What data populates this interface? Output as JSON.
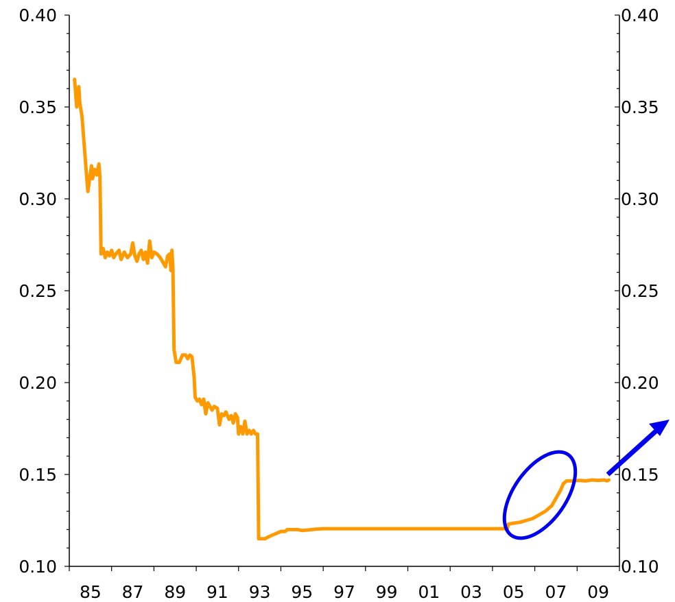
{
  "chart_data": {
    "type": "line",
    "title": "",
    "xlabel": "",
    "ylabel": "",
    "x_tick_labels": [
      "85",
      "87",
      "89",
      "91",
      "93",
      "95",
      "97",
      "99",
      "01",
      "03",
      "05",
      "07",
      "09"
    ],
    "x_tick_years": [
      1985,
      1987,
      1989,
      1991,
      1993,
      1995,
      1997,
      1999,
      2001,
      2003,
      2005,
      2007,
      2009
    ],
    "xlim": [
      1984,
      2010
    ],
    "ylim": [
      0.1,
      0.4
    ],
    "y_ticks": [
      0.1,
      0.15,
      0.2,
      0.25,
      0.3,
      0.35,
      0.4
    ],
    "y_tick_labels": [
      "0.10",
      "0.15",
      "0.20",
      "0.25",
      "0.30",
      "0.35",
      "0.40"
    ],
    "y_axes": [
      "left",
      "right"
    ],
    "grid": false,
    "legend": "none",
    "series": [
      {
        "color": "#FF9900",
        "points": [
          [
            1984.25,
            0.365
          ],
          [
            1984.35,
            0.35
          ],
          [
            1984.45,
            0.361
          ],
          [
            1984.5,
            0.352
          ],
          [
            1984.6,
            0.345
          ],
          [
            1984.7,
            0.33
          ],
          [
            1984.8,
            0.315
          ],
          [
            1984.88,
            0.304
          ],
          [
            1984.95,
            0.31
          ],
          [
            1985.05,
            0.318
          ],
          [
            1985.1,
            0.311
          ],
          [
            1985.2,
            0.316
          ],
          [
            1985.3,
            0.313
          ],
          [
            1985.4,
            0.319
          ],
          [
            1985.45,
            0.312
          ],
          [
            1985.5,
            0.27
          ],
          [
            1985.6,
            0.273
          ],
          [
            1985.7,
            0.268
          ],
          [
            1985.8,
            0.271
          ],
          [
            1985.9,
            0.269
          ],
          [
            1986.0,
            0.272
          ],
          [
            1986.1,
            0.268
          ],
          [
            1986.2,
            0.27
          ],
          [
            1986.35,
            0.272
          ],
          [
            1986.45,
            0.267
          ],
          [
            1986.6,
            0.271
          ],
          [
            1986.75,
            0.268
          ],
          [
            1986.9,
            0.27
          ],
          [
            1987.0,
            0.276
          ],
          [
            1987.1,
            0.269
          ],
          [
            1987.2,
            0.266
          ],
          [
            1987.3,
            0.27
          ],
          [
            1987.4,
            0.272
          ],
          [
            1987.5,
            0.267
          ],
          [
            1987.6,
            0.271
          ],
          [
            1987.7,
            0.265
          ],
          [
            1987.8,
            0.277
          ],
          [
            1987.9,
            0.268
          ],
          [
            1988.0,
            0.271
          ],
          [
            1988.15,
            0.27
          ],
          [
            1988.3,
            0.268
          ],
          [
            1988.45,
            0.265
          ],
          [
            1988.55,
            0.263
          ],
          [
            1988.65,
            0.269
          ],
          [
            1988.75,
            0.27
          ],
          [
            1988.8,
            0.261
          ],
          [
            1988.85,
            0.272
          ],
          [
            1988.9,
            0.262
          ],
          [
            1988.95,
            0.218
          ],
          [
            1989.05,
            0.211
          ],
          [
            1989.2,
            0.211
          ],
          [
            1989.35,
            0.215
          ],
          [
            1989.5,
            0.215
          ],
          [
            1989.6,
            0.213
          ],
          [
            1989.7,
            0.215
          ],
          [
            1989.8,
            0.214
          ],
          [
            1989.9,
            0.203
          ],
          [
            1989.95,
            0.192
          ],
          [
            1990.05,
            0.19
          ],
          [
            1990.15,
            0.191
          ],
          [
            1990.25,
            0.188
          ],
          [
            1990.35,
            0.191
          ],
          [
            1990.45,
            0.183
          ],
          [
            1990.55,
            0.189
          ],
          [
            1990.65,
            0.187
          ],
          [
            1990.75,
            0.185
          ],
          [
            1990.85,
            0.187
          ],
          [
            1991.0,
            0.186
          ],
          [
            1991.1,
            0.177
          ],
          [
            1991.2,
            0.183
          ],
          [
            1991.3,
            0.182
          ],
          [
            1991.4,
            0.184
          ],
          [
            1991.55,
            0.18
          ],
          [
            1991.65,
            0.182
          ],
          [
            1991.75,
            0.178
          ],
          [
            1991.85,
            0.183
          ],
          [
            1991.95,
            0.181
          ],
          [
            1992.0,
            0.172
          ],
          [
            1992.1,
            0.176
          ],
          [
            1992.2,
            0.172
          ],
          [
            1992.3,
            0.179
          ],
          [
            1992.4,
            0.172
          ],
          [
            1992.5,
            0.174
          ],
          [
            1992.6,
            0.172
          ],
          [
            1992.7,
            0.174
          ],
          [
            1992.8,
            0.172
          ],
          [
            1992.9,
            0.172
          ],
          [
            1992.95,
            0.115
          ],
          [
            1993.1,
            0.115
          ],
          [
            1993.25,
            0.115
          ],
          [
            1993.4,
            0.116
          ],
          [
            1993.6,
            0.117
          ],
          [
            1993.8,
            0.118
          ],
          [
            1994.0,
            0.119
          ],
          [
            1994.2,
            0.119
          ],
          [
            1994.3,
            0.12
          ],
          [
            1994.8,
            0.12
          ],
          [
            1995.0,
            0.1195
          ],
          [
            1995.3,
            0.1198
          ],
          [
            1995.6,
            0.1202
          ],
          [
            1996.0,
            0.1205
          ],
          [
            2004.7,
            0.1205
          ],
          [
            2004.75,
            0.123
          ],
          [
            2005.0,
            0.1235
          ],
          [
            2005.3,
            0.124
          ],
          [
            2005.6,
            0.125
          ],
          [
            2005.9,
            0.126
          ],
          [
            2006.2,
            0.128
          ],
          [
            2006.5,
            0.13
          ],
          [
            2006.8,
            0.133
          ],
          [
            2007.0,
            0.137
          ],
          [
            2007.2,
            0.141
          ],
          [
            2007.35,
            0.145
          ],
          [
            2007.5,
            0.1465
          ],
          [
            2007.8,
            0.1465
          ],
          [
            2008.1,
            0.1468
          ],
          [
            2008.4,
            0.1465
          ],
          [
            2008.7,
            0.147
          ],
          [
            2009.0,
            0.1468
          ],
          [
            2009.3,
            0.147
          ],
          [
            2009.4,
            0.1465
          ],
          [
            2009.5,
            0.147
          ]
        ]
      }
    ],
    "annotations": [
      {
        "type": "ellipse",
        "color": "#0000EE"
      },
      {
        "type": "arrow",
        "direction": "up-right",
        "color": "#0000EE"
      }
    ]
  }
}
